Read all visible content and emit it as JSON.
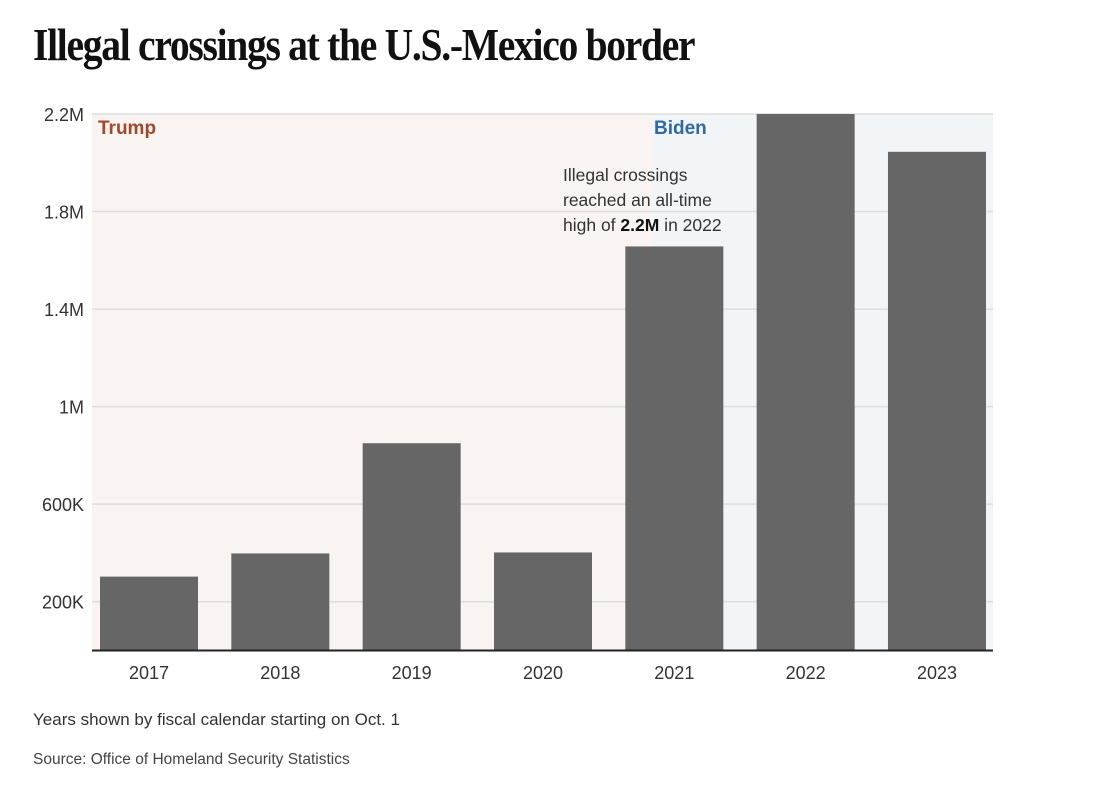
{
  "title": "Illegal crossings at the U.S.-Mexico border",
  "colors": {
    "bar": "#666666",
    "trump": "#a4472a",
    "biden": "#2f6aa3",
    "trump_bg": "#f9f4f2",
    "biden_bg": "#f2f5f8",
    "grid": "#dddddd",
    "axis": "#222222"
  },
  "chart_data": {
    "type": "bar",
    "title": "Illegal crossings at the U.S.-Mexico border",
    "xlabel": "",
    "ylabel": "",
    "categories": [
      "2017",
      "2018",
      "2019",
      "2020",
      "2021",
      "2022",
      "2023"
    ],
    "values": [
      303000,
      398000,
      850000,
      402000,
      1657000,
      2200000,
      2045000
    ],
    "ylim": [
      0,
      2200000
    ],
    "yticks": [
      200000,
      600000,
      1000000,
      1400000,
      1800000,
      2200000
    ],
    "ytick_labels": [
      "200K",
      "600K",
      "1M",
      "1.4M",
      "1.8M",
      "2.2M"
    ],
    "grid": true,
    "eras": [
      {
        "label": "Trump",
        "from": "2017",
        "to": "2021 (early)"
      },
      {
        "label": "Biden",
        "from": "2021 (early)",
        "to": "2023"
      }
    ],
    "annotation": {
      "lines": [
        "Illegal crossings",
        "reached an all-time"
      ],
      "last_prefix": "high of ",
      "last_bold": "2.2M",
      "last_suffix": " in 2022"
    }
  },
  "footer": {
    "note": "Years shown by fiscal calendar starting on Oct. 1",
    "source": "Source: Office of Homeland Security Statistics"
  }
}
